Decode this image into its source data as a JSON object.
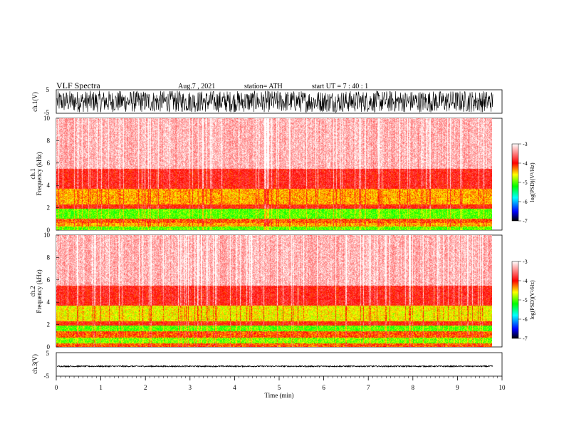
{
  "header": {
    "title": "VLF  Spectra",
    "date": "Aug.7  , 2021",
    "station": "station= ATH",
    "start": "start  UT  =    7  : 40 : 1"
  },
  "chart_data": [
    {
      "type": "line",
      "name": "ch1-waveform",
      "ylabel": "ch.1(V)",
      "ylim": [
        -5,
        5
      ],
      "yticks": [
        "5",
        "-5"
      ],
      "xlim": [
        0,
        10
      ],
      "description": "dense noisy waveform spanning approx -4.5 to 4.5 V over 0 to 9.8 min"
    },
    {
      "type": "heatmap",
      "name": "ch1-spectrogram",
      "ylabel": "ch.1\nFrequency  (kHz)",
      "ylim": [
        0,
        10
      ],
      "yticks": [
        "0",
        "2",
        "4",
        "6",
        "8",
        "10"
      ],
      "xlim": [
        0,
        9.8
      ],
      "colorbar": {
        "label": "log(PSD)(V²/Hz)",
        "range": [
          -7,
          -3
        ],
        "ticks": [
          "-3",
          "-4",
          "-5",
          "-6",
          "-7"
        ]
      },
      "bands_khz": [
        {
          "from": 0,
          "to": 0.3,
          "level": -5.0
        },
        {
          "from": 0.3,
          "to": 0.6,
          "level": -4.4
        },
        {
          "from": 0.6,
          "to": 1.0,
          "level": -4.2
        },
        {
          "from": 1.0,
          "to": 1.9,
          "level": -5.0
        },
        {
          "from": 1.9,
          "to": 2.3,
          "level": -4.0
        },
        {
          "from": 2.3,
          "to": 3.7,
          "level": -4.4
        },
        {
          "from": 3.7,
          "to": 5.5,
          "level": -3.9
        },
        {
          "from": 5.5,
          "to": 10,
          "level": -3.3
        }
      ]
    },
    {
      "type": "heatmap",
      "name": "ch2-spectrogram",
      "ylabel": "ch.2\nFrequency  (kHz)",
      "ylim": [
        0,
        10
      ],
      "yticks": [
        "0",
        "2",
        "4",
        "6",
        "8",
        "10"
      ],
      "xlim": [
        0,
        9.8
      ],
      "colorbar": {
        "label": "log(PSD)(V²/Hz)",
        "range": [
          -7,
          -3
        ],
        "ticks": [
          "-3",
          "-4",
          "-5",
          "-6",
          "-7"
        ]
      },
      "bands_khz": [
        {
          "from": 0,
          "to": 0.3,
          "level": -4.2
        },
        {
          "from": 0.3,
          "to": 0.8,
          "level": -4.9
        },
        {
          "from": 0.8,
          "to": 1.4,
          "level": -4.2
        },
        {
          "from": 1.4,
          "to": 1.9,
          "level": -5.0
        },
        {
          "from": 1.9,
          "to": 2.3,
          "level": -4.0
        },
        {
          "from": 2.3,
          "to": 3.7,
          "level": -4.6
        },
        {
          "from": 3.7,
          "to": 5.5,
          "level": -3.9
        },
        {
          "from": 5.5,
          "to": 10,
          "level": -3.3
        }
      ]
    },
    {
      "type": "line",
      "name": "ch3-waveform",
      "ylabel": "ch.3(V)",
      "ylim": [
        -5,
        5
      ],
      "yticks": [
        "5",
        "-5"
      ],
      "xlim": [
        0,
        10
      ],
      "description": "flat signal near -0.8 V with small noise"
    }
  ],
  "xaxis": {
    "label": "Time  (min)",
    "ticks": [
      "0",
      "1",
      "2",
      "3",
      "4",
      "5",
      "6",
      "7",
      "8",
      "9",
      "10"
    ]
  },
  "colors": {
    "colormap": [
      "#000000",
      "#0000ff",
      "#00ffff",
      "#00ff00",
      "#ffff00",
      "#ff0000",
      "#ffffff"
    ]
  }
}
